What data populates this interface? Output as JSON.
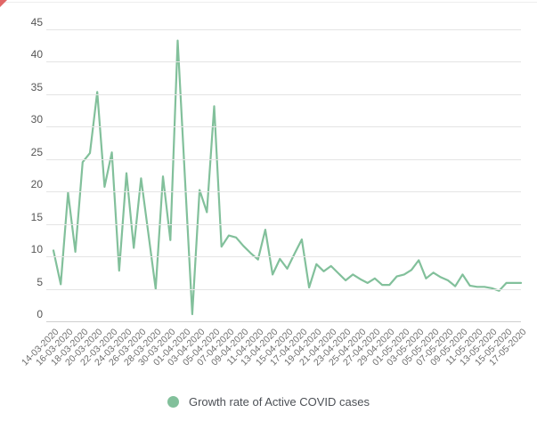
{
  "page": {
    "background": "#ffffff",
    "corner_marker_color": "#e06666"
  },
  "legend": {
    "label": "Growth rate of Active COVID cases",
    "marker_color": "#82c09b"
  },
  "x_axis": {
    "labels": [
      "14-03-2020",
      "16-03-2020",
      "18-03-2020",
      "20-03-2020",
      "22-03-2020",
      "24-03-2020",
      "26-03-2020",
      "28-03-2020",
      "30-03-2020",
      "01-04-2020",
      "03-04-2020",
      "05-04-2020",
      "07-04-2020",
      "09-04-2020",
      "11-04-2020",
      "13-04-2020",
      "15-04-2020",
      "17-04-2020",
      "19-04-2020",
      "21-04-2020",
      "23-04-2020",
      "25-04-2020",
      "27-04-2020",
      "29-04-2020",
      "01-05-2020",
      "03-05-2020",
      "05-05-2020",
      "07-05-2020",
      "09-05-2020",
      "11-05-2020",
      "13-05-2020",
      "15-05-2020",
      "17-05-2020"
    ]
  },
  "chart_data": {
    "type": "line",
    "title": "",
    "xlabel": "",
    "ylabel": "",
    "series_name": "Growth rate of Active COVID cases",
    "line_color": "#82c09b",
    "grid": true,
    "legend_position": "bottom",
    "ylim": [
      0,
      45
    ],
    "y_ticks": [
      0,
      5,
      10,
      15,
      20,
      25,
      30,
      35,
      40,
      45
    ],
    "x": [
      "14-03-2020",
      "15-03-2020",
      "16-03-2020",
      "17-03-2020",
      "18-03-2020",
      "19-03-2020",
      "20-03-2020",
      "21-03-2020",
      "22-03-2020",
      "23-03-2020",
      "24-03-2020",
      "25-03-2020",
      "26-03-2020",
      "27-03-2020",
      "28-03-2020",
      "29-03-2020",
      "30-03-2020",
      "31-03-2020",
      "01-04-2020",
      "02-04-2020",
      "03-04-2020",
      "04-04-2020",
      "05-04-2020",
      "06-04-2020",
      "07-04-2020",
      "08-04-2020",
      "09-04-2020",
      "10-04-2020",
      "11-04-2020",
      "12-04-2020",
      "13-04-2020",
      "14-04-2020",
      "15-04-2020",
      "16-04-2020",
      "17-04-2020",
      "18-04-2020",
      "19-04-2020",
      "20-04-2020",
      "21-04-2020",
      "22-04-2020",
      "23-04-2020",
      "24-04-2020",
      "25-04-2020",
      "26-04-2020",
      "27-04-2020",
      "28-04-2020",
      "29-04-2020",
      "30-04-2020",
      "01-05-2020",
      "02-05-2020",
      "03-05-2020",
      "04-05-2020",
      "05-05-2020",
      "06-05-2020",
      "07-05-2020",
      "08-05-2020",
      "09-05-2020",
      "10-05-2020",
      "11-05-2020",
      "12-05-2020",
      "13-05-2020",
      "14-05-2020",
      "15-05-2020",
      "16-05-2020",
      "17-05-2020"
    ],
    "values": [
      10.9,
      5.7,
      19.8,
      10.7,
      24.5,
      25.9,
      35.3,
      20.7,
      26.0,
      7.8,
      22.8,
      11.3,
      22.0,
      13.5,
      5.0,
      22.3,
      12.5,
      43.2,
      22.0,
      1.1,
      20.2,
      16.8,
      33.1,
      11.5,
      13.2,
      12.9,
      11.6,
      10.5,
      9.5,
      14.1,
      7.2,
      9.6,
      8.1,
      10.4,
      12.6,
      5.2,
      8.8,
      7.7,
      8.5,
      7.4,
      6.3,
      7.2,
      6.5,
      5.9,
      6.6,
      5.6,
      5.6,
      6.9,
      7.2,
      7.9,
      9.4,
      6.6,
      7.5,
      6.8,
      6.3,
      5.4,
      7.2,
      5.5,
      5.3,
      5.3,
      5.1,
      4.7,
      5.9,
      5.9,
      5.9
    ]
  }
}
